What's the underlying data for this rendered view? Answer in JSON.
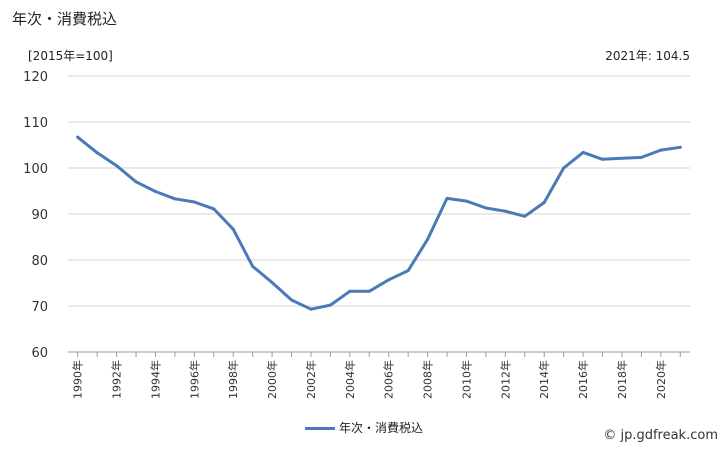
{
  "title": "年次・消費税込",
  "unit_label": "[2015年=100]",
  "latest_label": "2021年: 104.5",
  "credit": "© jp.gdfreak.com",
  "chart_data": {
    "type": "line",
    "title": "年次・消費税込",
    "ylabel": "[2015年=100]",
    "ylim": [
      60,
      120
    ],
    "yticks": [
      60,
      70,
      80,
      90,
      100,
      110,
      120
    ],
    "xtick_labels": [
      "1990年",
      "1992年",
      "1994年",
      "1996年",
      "1998年",
      "2000年",
      "2002年",
      "2004年",
      "2006年",
      "2008年",
      "2010年",
      "2012年",
      "2014年",
      "2016年",
      "2018年",
      "2020年"
    ],
    "grid": true,
    "legend": "bottom",
    "color": "#4a7ab7",
    "series": [
      {
        "name": "年次・消費税込",
        "x": [
          1990,
          1991,
          1992,
          1993,
          1994,
          1995,
          1996,
          1997,
          1998,
          1999,
          2000,
          2001,
          2002,
          2003,
          2004,
          2005,
          2006,
          2007,
          2008,
          2009,
          2010,
          2011,
          2012,
          2013,
          2014,
          2015,
          2016,
          2017,
          2018,
          2019,
          2020,
          2021
        ],
        "values": [
          106.7,
          103.3,
          100.5,
          97.0,
          94.9,
          93.3,
          92.6,
          91.1,
          86.7,
          78.6,
          75.1,
          71.3,
          69.3,
          70.2,
          73.2,
          73.2,
          75.7,
          77.7,
          84.5,
          93.4,
          92.8,
          91.3,
          90.6,
          89.5,
          92.5,
          100.0,
          103.4,
          101.9,
          102.1,
          102.3,
          103.9,
          104.5
        ]
      }
    ]
  }
}
